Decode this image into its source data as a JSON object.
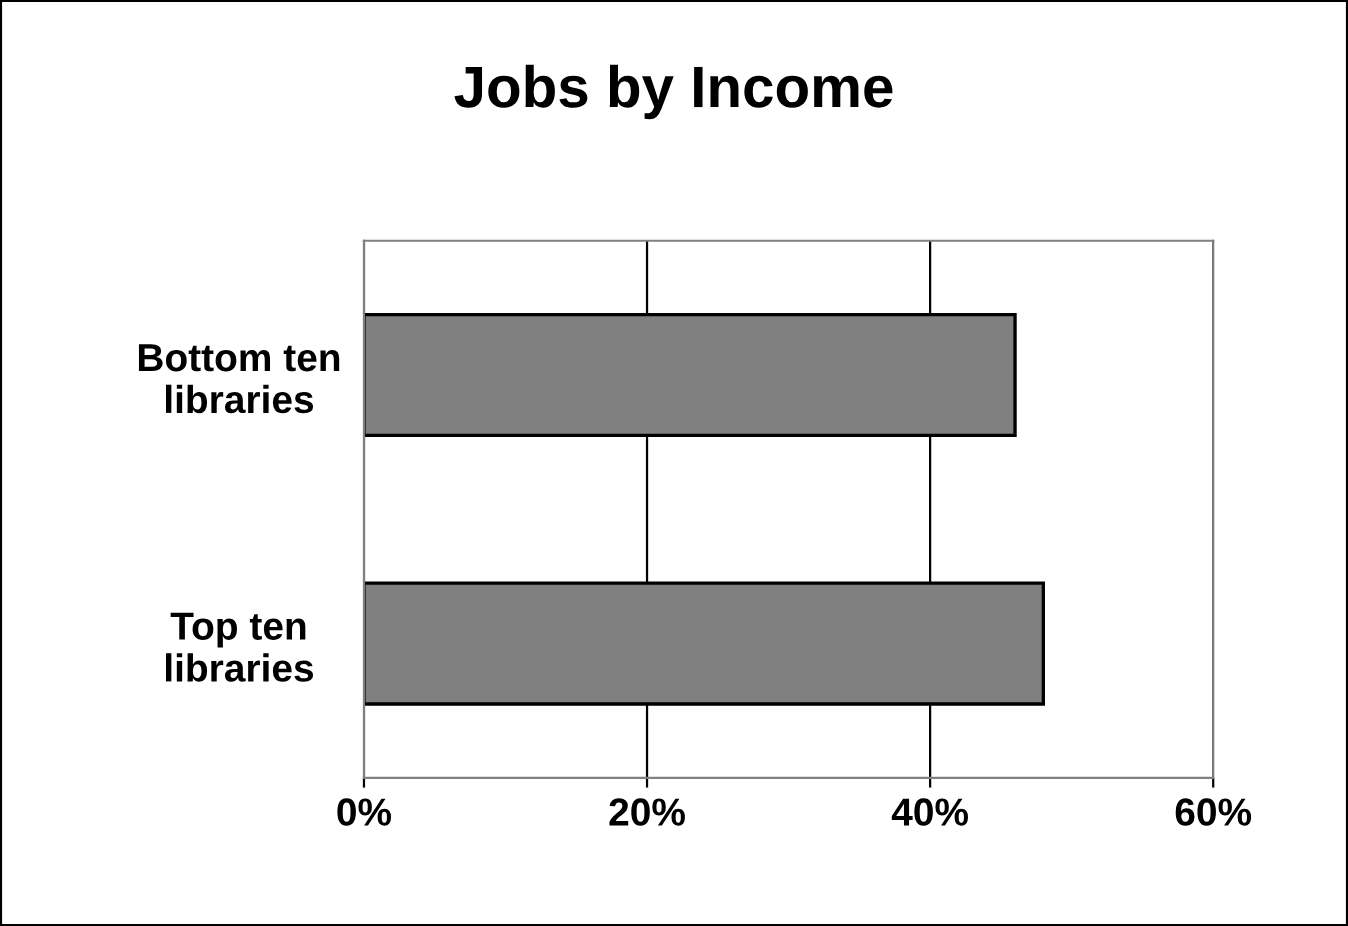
{
  "chart_data": {
    "type": "bar",
    "orientation": "horizontal",
    "title": "Jobs by Income",
    "categories": [
      "Bottom ten\nlibraries",
      "Top ten\nlibraries"
    ],
    "values": [
      46,
      48
    ],
    "color": "#808080",
    "xlim": [
      0,
      60
    ],
    "xticks": [
      {
        "value": 0,
        "label": "0%"
      },
      {
        "value": 20,
        "label": "20%"
      },
      {
        "value": 40,
        "label": "40%"
      },
      {
        "value": 60,
        "label": "60%"
      }
    ],
    "grid": "x",
    "legend": false
  }
}
